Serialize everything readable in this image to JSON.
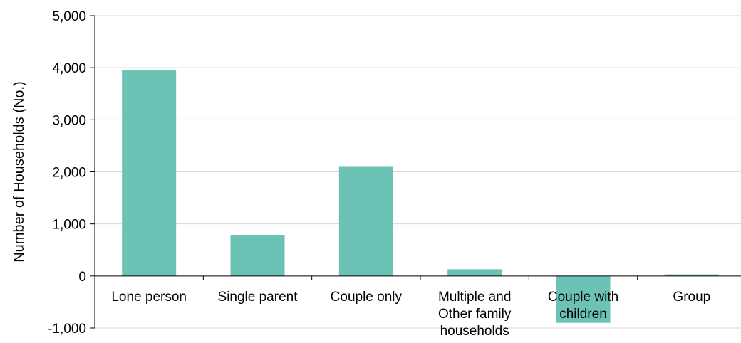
{
  "chart_data": {
    "type": "bar",
    "title": "",
    "xlabel": "",
    "ylabel": "Number of Households (No.)",
    "ylim": [
      -1000,
      5000
    ],
    "yticks": [
      -1000,
      0,
      1000,
      2000,
      3000,
      4000,
      5000
    ],
    "ytick_labels": [
      "-1,000",
      "0",
      "1,000",
      "2,000",
      "3,000",
      "4,000",
      "5,000"
    ],
    "categories": [
      [
        "Lone person"
      ],
      [
        "Single parent"
      ],
      [
        "Couple only"
      ],
      [
        "Multiple and",
        "Other family",
        "households"
      ],
      [
        "Couple with",
        "children"
      ],
      [
        "Group"
      ]
    ],
    "values": [
      3950,
      790,
      2110,
      130,
      -900,
      30
    ],
    "grid": true,
    "bar_color": "#6cc2b5",
    "grid_color": "#d9d9d9",
    "axis_color": "#000000"
  }
}
